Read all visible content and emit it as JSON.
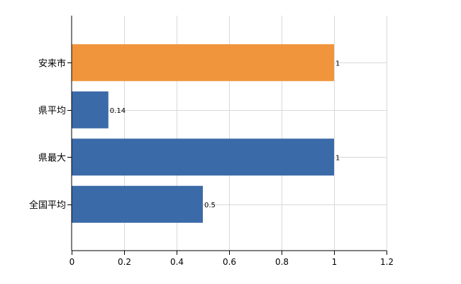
{
  "chart_data": {
    "type": "bar",
    "orientation": "horizontal",
    "title": "",
    "xlabel": "",
    "ylabel": "",
    "categories": [
      "安来市",
      "県平均",
      "県最大",
      "全国平均"
    ],
    "values": [
      1,
      0.14,
      1,
      0.5
    ],
    "value_labels": [
      "1",
      "0.14",
      "1",
      "0.5"
    ],
    "bar_colors": [
      "#f0953b",
      "#3a6aa8",
      "#3a6aa8",
      "#3a6aa8"
    ],
    "xlim": [
      0,
      1.2
    ],
    "xticks": [
      0,
      0.2,
      0.4,
      0.6,
      0.8,
      1,
      1.2
    ],
    "xtick_labels": [
      "0",
      "0.2",
      "0.4",
      "0.6",
      "0.8",
      "1",
      "1.2"
    ],
    "grid": true,
    "legend": "none"
  }
}
